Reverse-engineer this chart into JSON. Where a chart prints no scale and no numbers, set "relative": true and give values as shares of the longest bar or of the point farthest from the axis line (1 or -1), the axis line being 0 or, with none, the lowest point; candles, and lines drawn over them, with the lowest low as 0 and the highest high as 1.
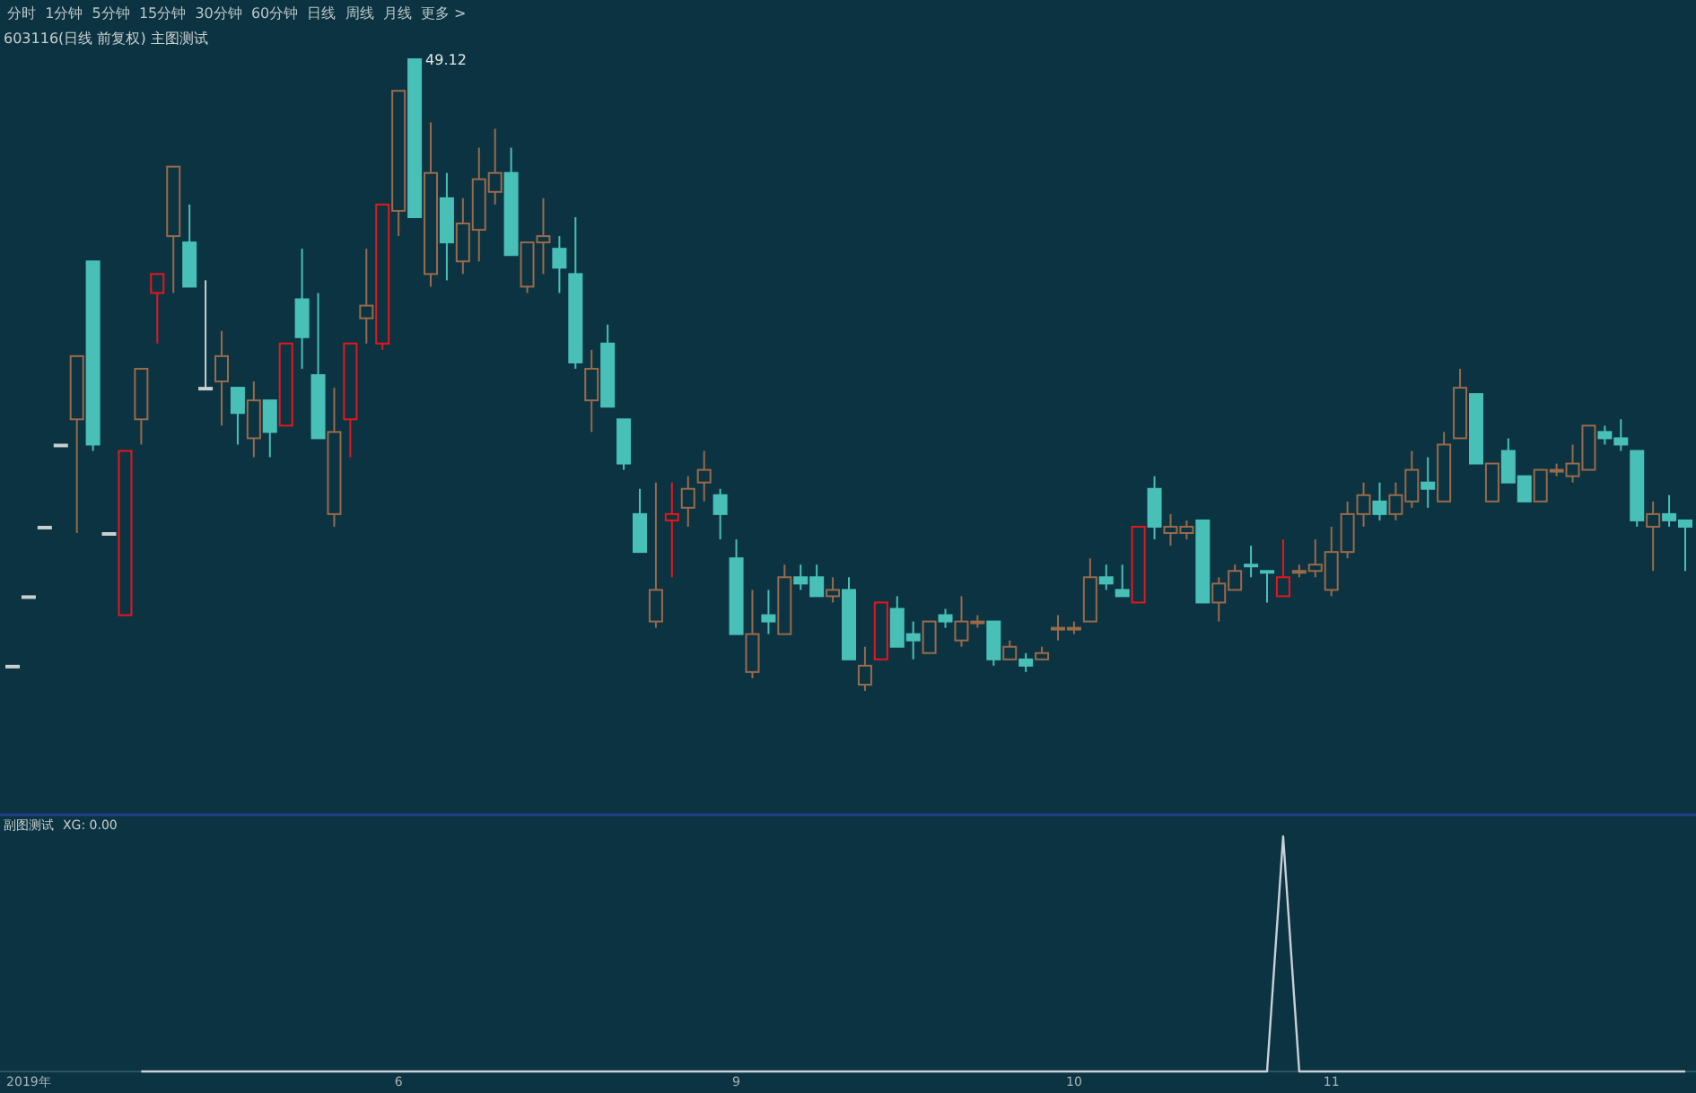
{
  "chart_data": [
    {
      "type": "candlestick",
      "title": "603116(日线 前复权) 主图测试",
      "tick_labels": false,
      "subtitle": "分时  1分钟  5分钟  15分钟  30分钟  60分钟  日线  周线  月线  更多 >",
      "relative": true,
      "annotations": [
        "49.12"
      ],
      "categories": [
        null,
        null,
        null,
        null,
        null,
        null,
        null,
        null,
        null,
        null,
        null,
        null,
        null,
        null,
        null,
        null,
        null,
        null,
        null,
        null,
        null,
        null,
        null,
        null,
        null,
        null,
        null,
        null,
        null,
        null,
        null,
        null,
        null,
        null,
        null,
        null,
        null,
        null,
        null,
        null,
        null,
        null,
        null,
        null,
        null,
        null,
        null,
        null,
        null,
        null,
        null,
        null,
        null,
        null,
        null,
        null,
        null,
        null,
        null,
        null,
        null,
        null,
        null,
        null,
        null,
        null,
        null,
        null,
        null,
        null,
        null,
        null,
        null,
        null,
        null,
        null,
        null,
        null,
        null,
        null,
        null,
        null,
        null,
        null,
        null,
        null,
        null,
        null,
        null,
        null,
        null,
        null,
        null,
        null,
        null,
        null,
        null,
        null,
        null,
        null,
        null,
        null,
        null,
        null,
        null
      ],
      "ohlc": [
        [
          0.04,
          0.04,
          0.04,
          0.04
        ],
        [
          0.15,
          0.15,
          0.15,
          0.15
        ],
        [
          0.26,
          0.26,
          0.26,
          0.26
        ],
        [
          0.39,
          0.39,
          0.39,
          0.39
        ],
        [
          0.43,
          0.53,
          0.25,
          0.53
        ],
        [
          0.68,
          0.68,
          0.38,
          0.39
        ],
        [
          0.25,
          0.25,
          0.25,
          0.25
        ],
        [
          0.12,
          0.38,
          0.12,
          0.38
        ],
        [
          0.43,
          0.51,
          0.39,
          0.51
        ],
        [
          0.63,
          0.66,
          0.55,
          0.66
        ],
        [
          0.72,
          0.83,
          0.63,
          0.83
        ],
        [
          0.71,
          0.77,
          0.64,
          0.64
        ],
        [
          0.48,
          0.65,
          0.48,
          0.48
        ],
        [
          0.49,
          0.57,
          0.42,
          0.53
        ],
        [
          0.48,
          0.48,
          0.39,
          0.44
        ],
        [
          0.4,
          0.49,
          0.37,
          0.46
        ],
        [
          0.46,
          0.46,
          0.37,
          0.41
        ],
        [
          0.42,
          0.55,
          0.42,
          0.55
        ],
        [
          0.62,
          0.7,
          0.51,
          0.56
        ],
        [
          0.5,
          0.63,
          0.4,
          0.4
        ],
        [
          0.28,
          0.48,
          0.26,
          0.41
        ],
        [
          0.43,
          0.55,
          0.37,
          0.55
        ],
        [
          0.59,
          0.7,
          0.55,
          0.61
        ],
        [
          0.55,
          0.77,
          0.54,
          0.77
        ],
        [
          0.76,
          0.95,
          0.72,
          0.95
        ],
        [
          1,
          1,
          0.75,
          0.75
        ],
        [
          0.66,
          0.9,
          0.64,
          0.82
        ],
        [
          0.78,
          0.82,
          0.65,
          0.71
        ],
        [
          0.68,
          0.78,
          0.66,
          0.74
        ],
        [
          0.73,
          0.86,
          0.68,
          0.81
        ],
        [
          0.79,
          0.89,
          0.77,
          0.82
        ],
        [
          0.82,
          0.86,
          0.69,
          0.69
        ],
        [
          0.64,
          0.71,
          0.63,
          0.71
        ],
        [
          0.71,
          0.78,
          0.66,
          0.72
        ],
        [
          0.7,
          0.72,
          0.63,
          0.67
        ],
        [
          0.66,
          0.75,
          0.51,
          0.52
        ],
        [
          0.46,
          0.54,
          0.41,
          0.51
        ],
        [
          0.55,
          0.58,
          0.45,
          0.45
        ],
        [
          0.43,
          0.43,
          0.35,
          0.36
        ],
        [
          0.28,
          0.32,
          0.22,
          0.22
        ],
        [
          0.11,
          0.33,
          0.1,
          0.16
        ],
        [
          0.27,
          0.33,
          0.18,
          0.28
        ],
        [
          0.29,
          0.34,
          0.26,
          0.32
        ],
        [
          0.33,
          0.38,
          0.3,
          0.35
        ],
        [
          0.31,
          0.32,
          0.24,
          0.28
        ],
        [
          0.21,
          0.24,
          0.09,
          0.09
        ],
        [
          0.03,
          0.16,
          0.02,
          0.09
        ],
        [
          0.12,
          0.16,
          0.09,
          0.11
        ],
        [
          0.09,
          0.2,
          0.09,
          0.18
        ],
        [
          0.18,
          0.2,
          0.16,
          0.17
        ],
        [
          0.18,
          0.2,
          0.15,
          0.15
        ],
        [
          0.15,
          0.18,
          0.14,
          0.16
        ],
        [
          0.16,
          0.18,
          0.05,
          0.05
        ],
        [
          0.01,
          0.07,
          0,
          0.04
        ],
        [
          0.05,
          0.14,
          0.05,
          0.14
        ],
        [
          0.13,
          0.15,
          0.07,
          0.07
        ],
        [
          0.09,
          0.11,
          0.05,
          0.08
        ],
        [
          0.06,
          0.11,
          0.06,
          0.11
        ],
        [
          0.12,
          0.13,
          0.1,
          0.11
        ],
        [
          0.08,
          0.15,
          0.07,
          0.11
        ],
        [
          0.11,
          0.12,
          0.1,
          0.11
        ],
        [
          0.11,
          0.11,
          0.04,
          0.05
        ],
        [
          0.05,
          0.08,
          0.05,
          0.07
        ],
        [
          0.05,
          0.06,
          0.03,
          0.04
        ],
        [
          0.05,
          0.07,
          0.05,
          0.06
        ],
        [
          0.1,
          0.12,
          0.08,
          0.1
        ],
        [
          0.1,
          0.11,
          0.09,
          0.1
        ],
        [
          0.11,
          0.21,
          0.11,
          0.18
        ],
        [
          0.18,
          0.2,
          0.16,
          0.17
        ],
        [
          0.16,
          0.2,
          0.15,
          0.15
        ],
        [
          0.14,
          0.26,
          0.14,
          0.26
        ],
        [
          0.32,
          0.34,
          0.24,
          0.26
        ],
        [
          0.25,
          0.28,
          0.23,
          0.26
        ],
        [
          0.25,
          0.27,
          0.24,
          0.26
        ],
        [
          0.27,
          0.27,
          0.14,
          0.14
        ],
        [
          0.14,
          0.18,
          0.11,
          0.17
        ],
        [
          0.16,
          0.2,
          0.16,
          0.19
        ],
        [
          0.2,
          0.23,
          0.18,
          0.2
        ],
        [
          0.19,
          0.19,
          0.14,
          0.19
        ],
        [
          0.15,
          0.24,
          0.15,
          0.18
        ],
        [
          0.19,
          0.2,
          0.18,
          0.19
        ],
        [
          0.19,
          0.24,
          0.18,
          0.2
        ],
        [
          0.16,
          0.26,
          0.15,
          0.22
        ],
        [
          0.22,
          0.3,
          0.21,
          0.28
        ],
        [
          0.28,
          0.33,
          0.26,
          0.31
        ],
        [
          0.3,
          0.33,
          0.27,
          0.28
        ],
        [
          0.28,
          0.33,
          0.27,
          0.31
        ],
        [
          0.3,
          0.38,
          0.29,
          0.35
        ],
        [
          0.33,
          0.37,
          0.29,
          0.32
        ],
        [
          0.3,
          0.41,
          0.3,
          0.39
        ],
        [
          0.4,
          0.51,
          0.4,
          0.48
        ],
        [
          0.47,
          0.47,
          0.36,
          0.36
        ],
        [
          0.3,
          0.36,
          0.3,
          0.36
        ],
        [
          0.38,
          0.4,
          0.33,
          0.33
        ],
        [
          0.34,
          0.34,
          0.3,
          0.3
        ],
        [
          0.3,
          0.35,
          0.3,
          0.35
        ],
        [
          0.35,
          0.36,
          0.34,
          0.35
        ],
        [
          0.34,
          0.39,
          0.33,
          0.36
        ],
        [
          0.35,
          0.42,
          0.35,
          0.42
        ],
        [
          0.41,
          0.42,
          0.39,
          0.4
        ],
        [
          0.4,
          0.43,
          0.38,
          0.39
        ],
        [
          0.38,
          0.38,
          0.26,
          0.27
        ],
        [
          0.26,
          0.3,
          0.19,
          0.28
        ],
        [
          0.28,
          0.31,
          0.26,
          0.27
        ],
        [
          0.27,
          0.27,
          0.19,
          0.26
        ]
      ],
      "colors": [
        "#c8d0d0",
        "#c8d0d0",
        "#c8d0d0",
        "#c8d0d0",
        "#9a6a4a",
        "#48c0b8",
        "#c8d0d0",
        "#e8161b",
        "#9a6a4a",
        "#e8161b",
        "#9a6a4a",
        "#48c0b8",
        "#c8d0d0",
        "#9a6a4a",
        "#48c0b8",
        "#9a6a4a",
        "#48c0b8",
        "#e8161b",
        "#48c0b8",
        "#48c0b8",
        "#9a6a4a",
        "#e8161b",
        "#9a6a4a",
        "#e8161b",
        "#9a6a4a",
        "#48c0b8",
        "#9a6a4a",
        "#48c0b8",
        "#9a6a4a",
        "#9a6a4a",
        "#9a6a4a",
        "#48c0b8",
        "#9a6a4a",
        "#9a6a4a",
        "#48c0b8",
        "#48c0b8",
        "#9a6a4a",
        "#48c0b8",
        "#48c0b8",
        "#48c0b8",
        "#9a6a4a",
        "#e8161b",
        "#9a6a4a",
        "#9a6a4a",
        "#48c0b8",
        "#48c0b8",
        "#9a6a4a",
        "#48c0b8",
        "#9a6a4a",
        "#48c0b8",
        "#48c0b8",
        "#9a6a4a",
        "#48c0b8",
        "#9a6a4a",
        "#e8161b",
        "#48c0b8",
        "#48c0b8",
        "#9a6a4a",
        "#48c0b8",
        "#9a6a4a",
        "#9a6a4a",
        "#48c0b8",
        "#9a6a4a",
        "#48c0b8",
        "#9a6a4a",
        "#9a6a4a",
        "#9a6a4a",
        "#9a6a4a",
        "#48c0b8",
        "#48c0b8",
        "#e8161b",
        "#48c0b8",
        "#9a6a4a",
        "#9a6a4a",
        "#48c0b8",
        "#9a6a4a",
        "#9a6a4a",
        "#48c0b8",
        "#48c0b8",
        "#e8161b",
        "#9a6a4a",
        "#9a6a4a",
        "#9a6a4a",
        "#9a6a4a",
        "#9a6a4a",
        "#48c0b8",
        "#9a6a4a",
        "#9a6a4a",
        "#48c0b8",
        "#9a6a4a",
        "#9a6a4a",
        "#48c0b8",
        "#9a6a4a",
        "#48c0b8",
        "#48c0b8",
        "#9a6a4a",
        "#9a6a4a",
        "#9a6a4a",
        "#9a6a4a",
        "#48c0b8",
        "#48c0b8",
        "#48c0b8",
        "#9a6a4a",
        "#48c0b8",
        "#48c0b8"
      ]
    },
    {
      "type": "line",
      "title": "副图测试",
      "relative": true,
      "tick_labels": "x",
      "annotations": [
        "XG: 0.00"
      ],
      "categories": [
        null,
        "2019年",
        null,
        null,
        null,
        null,
        null,
        null,
        null,
        null,
        null,
        null,
        null,
        null,
        null,
        null,
        null,
        null,
        null,
        null,
        null,
        null,
        null,
        null,
        "6",
        null,
        null,
        null,
        null,
        null,
        null,
        null,
        null,
        null,
        null,
        null,
        null,
        null,
        null,
        null,
        null,
        null,
        null,
        null,
        null,
        "9",
        null,
        null,
        null,
        null,
        null,
        null,
        null,
        null,
        null,
        null,
        null,
        null,
        null,
        null,
        null,
        null,
        null,
        null,
        null,
        null,
        "10",
        null,
        null,
        null,
        null,
        null,
        null,
        null,
        null,
        null,
        null,
        null,
        null,
        null,
        null,
        null,
        "11",
        null,
        null,
        null,
        null,
        null,
        null,
        null,
        null,
        null,
        null,
        null,
        null,
        null,
        null,
        null,
        null,
        null,
        null,
        null,
        null,
        null,
        null
      ],
      "series": [
        {
          "color": "#c8d0d8",
          "values": [
            null,
            null,
            null,
            null,
            null,
            null,
            null,
            null,
            0,
            0,
            0,
            0,
            0,
            0,
            0,
            0,
            0,
            0,
            0,
            0,
            0,
            0,
            0,
            0,
            0,
            0,
            0,
            0,
            0,
            0,
            0,
            0,
            0,
            0,
            0,
            0,
            0,
            0,
            0,
            0,
            0,
            0,
            0,
            0,
            0,
            0,
            0,
            0,
            0,
            0,
            0,
            0,
            0,
            0,
            0,
            0,
            0,
            0,
            0,
            0,
            0,
            0,
            0,
            0,
            0,
            0,
            0,
            0,
            0,
            0,
            0,
            0,
            0,
            0,
            0,
            0,
            0,
            0,
            0,
            1,
            0,
            0,
            0,
            0,
            0,
            0,
            0,
            0,
            0,
            0,
            0,
            0,
            0,
            0,
            0,
            0,
            0,
            0,
            0,
            0,
            0,
            0,
            0,
            0,
            0
          ]
        }
      ]
    }
  ]
}
